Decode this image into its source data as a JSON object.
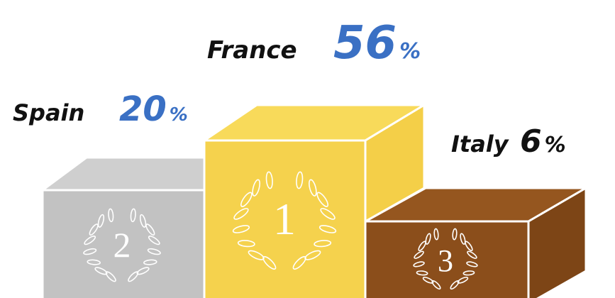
{
  "podium": [
    {
      "label": "France",
      "value": 56,
      "unit": "%",
      "rank": "1",
      "value_color": "#3a70c4"
    },
    {
      "label": "Spain",
      "value": 20,
      "unit": "%",
      "rank": "2",
      "value_color": "#3a70c4"
    },
    {
      "label": "Italy",
      "value": 6,
      "unit": "%",
      "rank": "3",
      "value_color": "#111111"
    }
  ]
}
